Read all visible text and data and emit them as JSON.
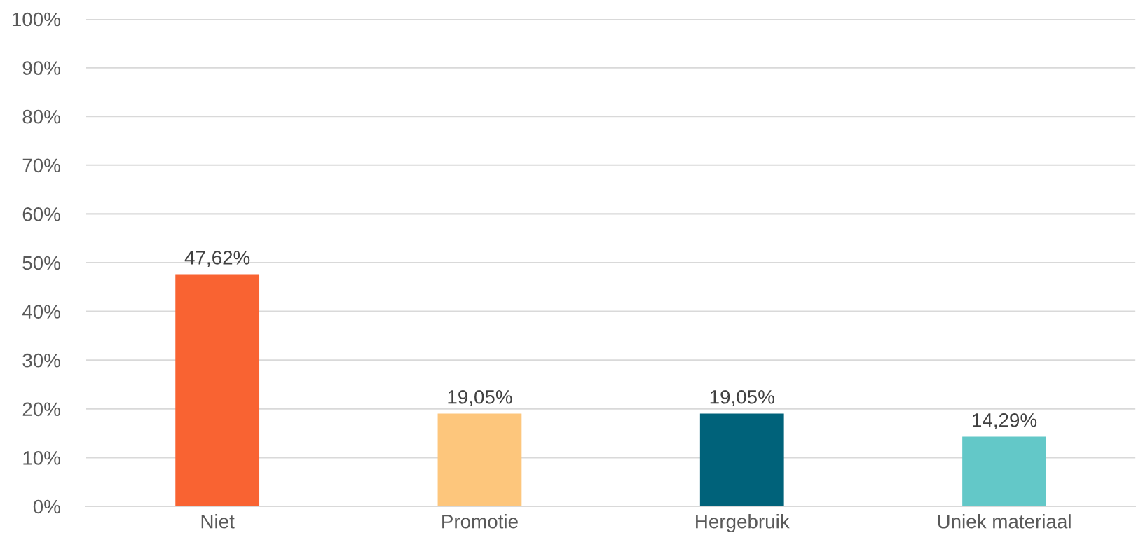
{
  "chart_data": {
    "type": "bar",
    "categories": [
      "Niet",
      "Promotie",
      "Hergebruik",
      "Uniek materiaal"
    ],
    "values": [
      47.62,
      19.05,
      19.05,
      14.29
    ],
    "colors": [
      "#f96332",
      "#fdc67c",
      "#00627a",
      "#63c8c8"
    ],
    "value_labels": [
      "47,62%",
      "19,05%",
      "19,05%",
      "14,29%"
    ],
    "ylim": [
      0,
      100
    ],
    "yticks": [
      {
        "value": 0,
        "label": "0%"
      },
      {
        "value": 10,
        "label": "10%"
      },
      {
        "value": 20,
        "label": "20%"
      },
      {
        "value": 30,
        "label": "30%"
      },
      {
        "value": 40,
        "label": "40%"
      },
      {
        "value": 50,
        "label": "50%"
      },
      {
        "value": 60,
        "label": "60%"
      },
      {
        "value": 70,
        "label": "70%"
      },
      {
        "value": 80,
        "label": "80%"
      },
      {
        "value": 90,
        "label": "90%"
      },
      {
        "value": 100,
        "label": "100%"
      }
    ],
    "grid": "y"
  }
}
